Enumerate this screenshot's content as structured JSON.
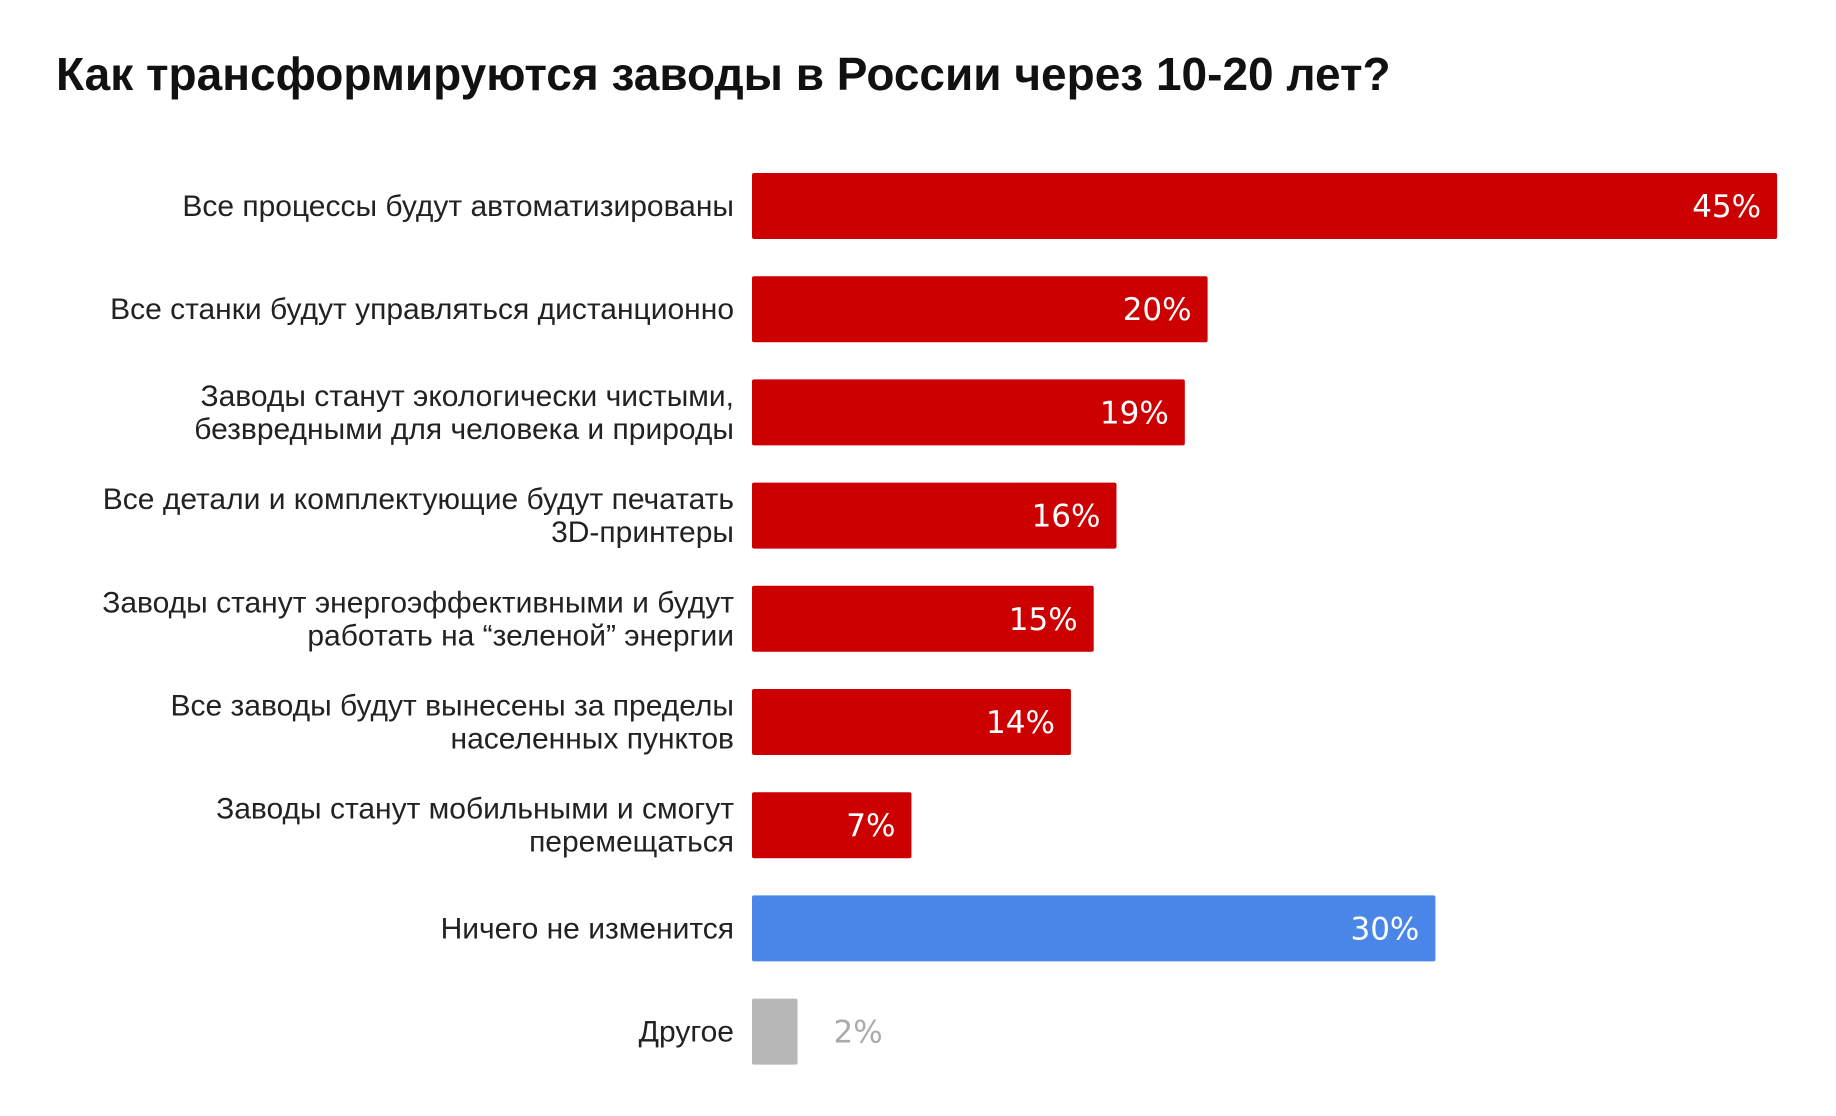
{
  "chart_data": {
    "type": "bar",
    "orientation": "horizontal",
    "title": "Как трансформируются заводы в России через 10-20 лет?",
    "xlabel": "",
    "ylabel": "",
    "grid": false,
    "legend": "none",
    "xlim": [
      0,
      50
    ],
    "value_unit": "%",
    "categories": [
      "Все процессы будут автоматизированы",
      "Все станки будут управляться дистанционно",
      "Заводы станут экологически чистыми, безвредными для человека и природы",
      "Все детали и комплектующие будут печатать 3D-принтеры",
      "Заводы станут энергоэффективными и будут работать на “зеленой” энергии",
      "Все заводы будут вынесены за пределы населенных пунктов",
      "Заводы станут мобильными и смогут перемещаться",
      "Ничего не изменится",
      "Другое"
    ],
    "values": [
      45,
      20,
      19,
      16,
      15,
      14,
      7,
      30,
      2
    ],
    "value_labels": [
      "45%",
      "20%",
      "19%",
      "16%",
      "15%",
      "14%",
      "7%",
      "30%",
      "2%"
    ],
    "colors": {
      "change": "#CC0000",
      "no_change": "#4A86E8",
      "other": "#B7B7B7",
      "inside_label": "#FFFFFF",
      "outside_label": "#AAAAAA"
    },
    "bar_color_keys": [
      "change",
      "change",
      "change",
      "change",
      "change",
      "change",
      "change",
      "no_change",
      "other"
    ]
  }
}
